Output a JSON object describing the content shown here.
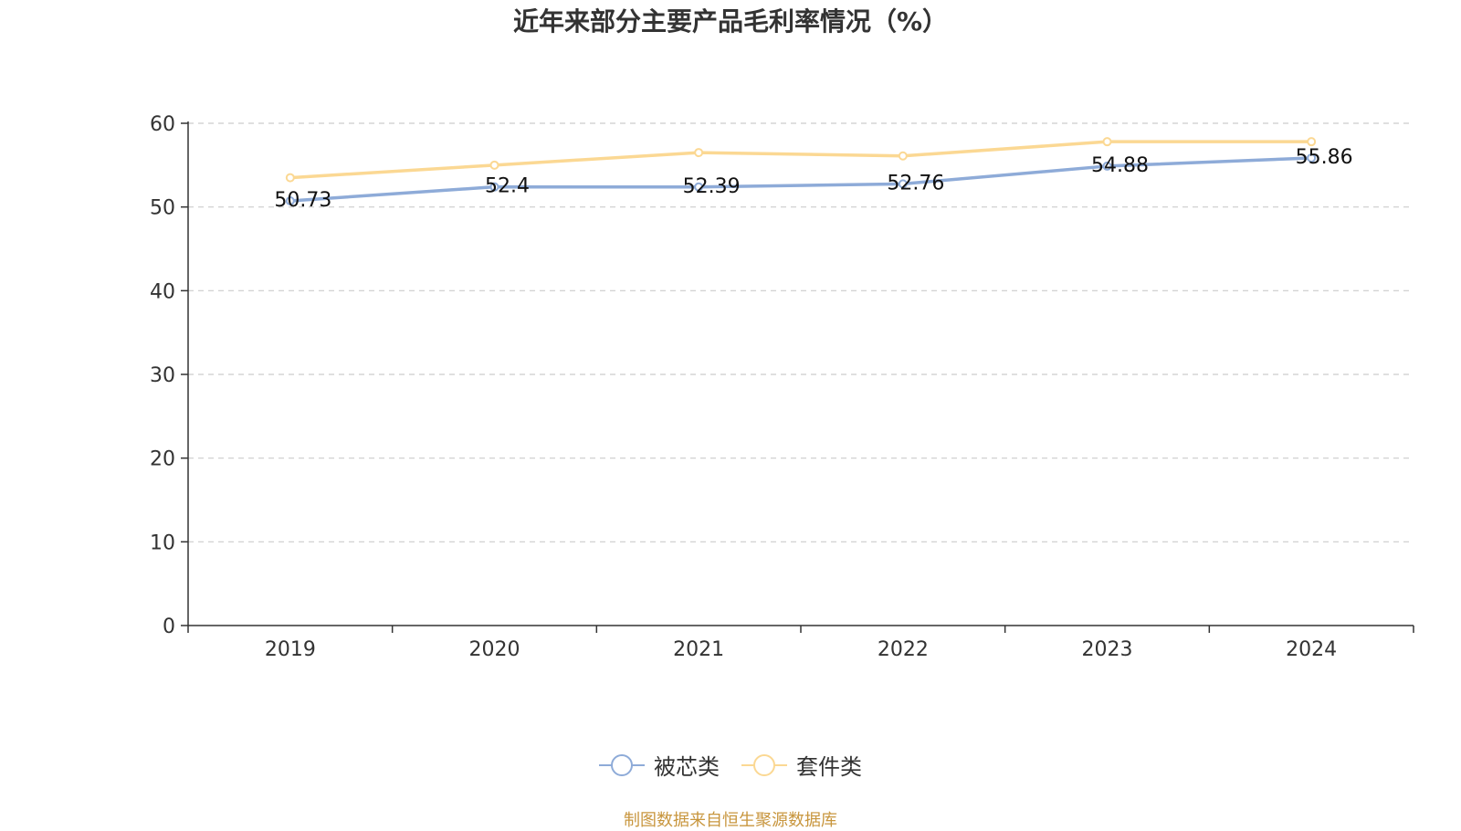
{
  "chart_data": {
    "type": "line",
    "title": "近年来部分主要产品毛利率情况（%）",
    "categories": [
      "2019",
      "2020",
      "2021",
      "2022",
      "2023",
      "2024"
    ],
    "series": [
      {
        "name": "被芯类",
        "color": "#8eabd8",
        "values": [
          50.73,
          52.4,
          52.39,
          52.76,
          54.88,
          55.86
        ],
        "show_labels": true
      },
      {
        "name": "套件类",
        "color": "#fbd893",
        "values": [
          53.5,
          55.0,
          56.5,
          56.1,
          57.8,
          57.8
        ],
        "show_labels": false
      }
    ],
    "ylim": [
      0,
      60
    ],
    "yticks": [
      0,
      10,
      20,
      30,
      40,
      50,
      60
    ],
    "grid": true,
    "legend_position": "bottom"
  },
  "source_note": "制图数据来自恒生聚源数据库"
}
